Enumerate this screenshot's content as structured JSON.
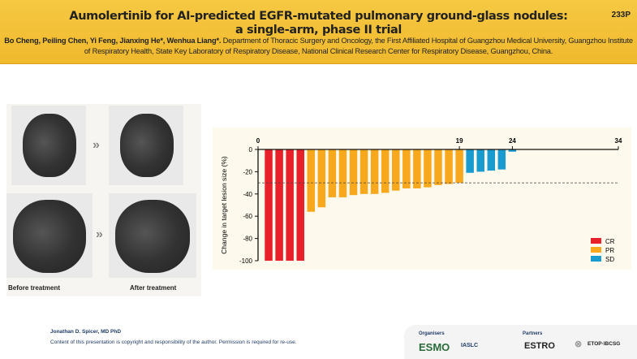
{
  "header": {
    "title_line1": "Aumolertinib for AI-predicted EGFR-mutated pulmonary ground-glass nodules:",
    "title_line2": "a single-arm, phase II trial",
    "abstract_code": "233P",
    "authors": "Bo Cheng, Peiling Chen, Yi Feng, Jianxing He*, Wenhua Liang*.",
    "affiliation": " Department of Thoracic Surgery and Oncology, the First Affiliated Hospital of Guangzhou Medical University, Guangzhou Institute of Respiratory Health, State Key Laboratory of Respiratory Disease, National Clinical Research Center for Respiratory Disease, Guangzhou, China."
  },
  "images": {
    "before_label": "Before treatment",
    "after_label": "After treatment",
    "arrow": "»"
  },
  "chart_data": {
    "type": "bar",
    "ylabel": "Change in target lesion size (%)",
    "ylim": [
      -100,
      0
    ],
    "yticks": [
      0,
      -20,
      -40,
      -60,
      -80,
      -100
    ],
    "xticks": [
      0,
      19,
      24,
      34
    ],
    "xlim": [
      0,
      34
    ],
    "threshold": -30,
    "legend_position": "bottom-right",
    "series": [
      {
        "name": "CR",
        "color": "#e8202a",
        "values": [
          -100,
          -100,
          -100,
          -100
        ]
      },
      {
        "name": "PR",
        "color": "#f8a81c",
        "values": [
          -56,
          -52,
          -43,
          -43,
          -41,
          -40,
          -40,
          -39,
          -37,
          -35,
          -35,
          -34,
          -32,
          -31,
          -30
        ]
      },
      {
        "name": "SD",
        "color": "#1a9bd0",
        "values": [
          -21,
          -20,
          -19,
          -18,
          -2
        ]
      }
    ]
  },
  "footer": {
    "presenter": "Jonathan D. Spicer, MD PhD",
    "copyright": "Content of this presentation is copyright and responsibility of the author. Permission is required for re-use.",
    "organisers_label": "Organisers",
    "partners_label": "Partners",
    "logos": [
      "ESMO",
      "IASLC",
      "ESTRO",
      "ETOP·IBCSG"
    ]
  }
}
